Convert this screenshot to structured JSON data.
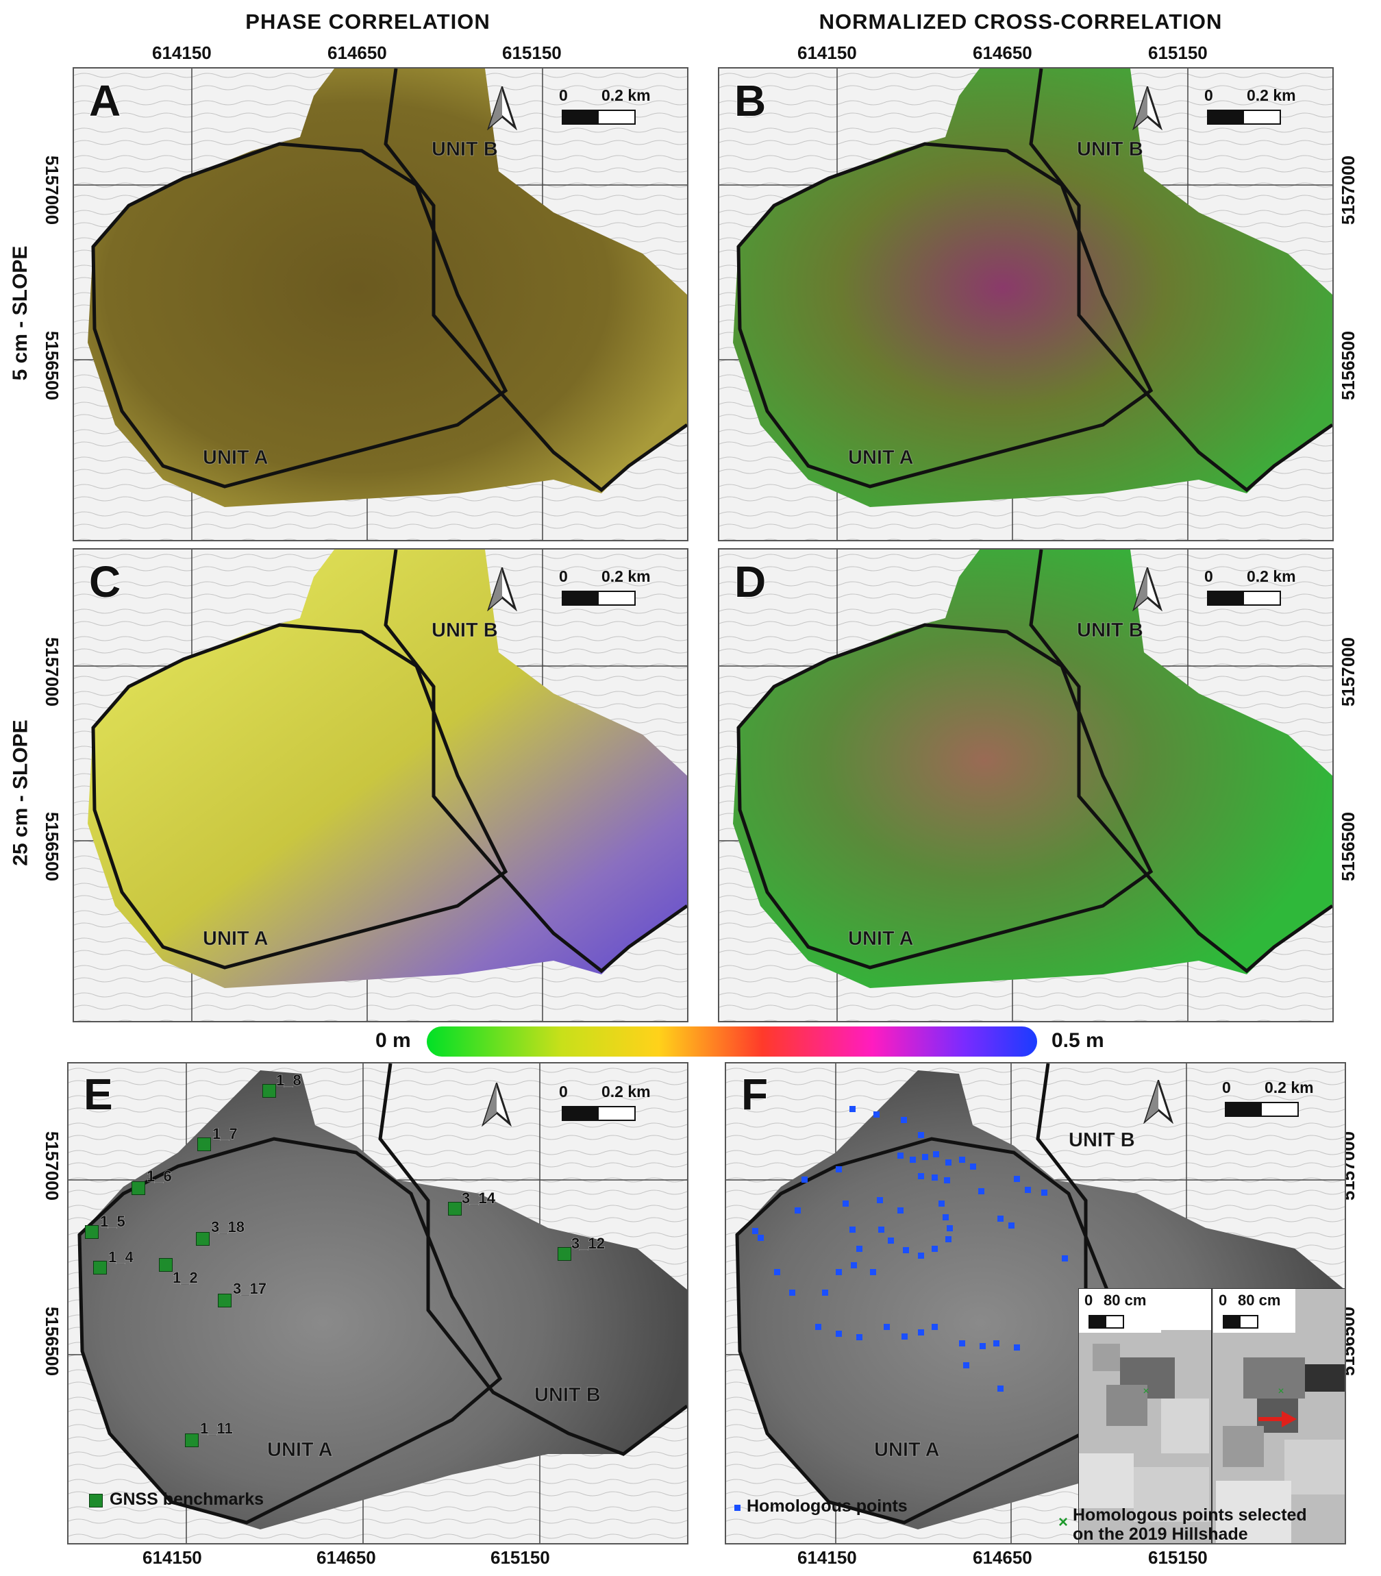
{
  "column_titles": [
    "PHASE CORRELATION",
    "NORMALIZED CROSS-CORRELATION"
  ],
  "row_titles": [
    "5 cm - SLOPE",
    "25 cm - SLOPE"
  ],
  "x_ticks_top": [
    "614150",
    "614650",
    "615150"
  ],
  "x_ticks_bottom": [
    "614150",
    "614650",
    "615150"
  ],
  "y_ticks": [
    "5157000",
    "5156500"
  ],
  "panels": [
    {
      "letter": "A",
      "units": [
        "UNIT A",
        "UNIT B"
      ]
    },
    {
      "letter": "B",
      "units": [
        "UNIT A",
        "UNIT B"
      ]
    },
    {
      "letter": "C",
      "units": [
        "UNIT A",
        "UNIT B"
      ]
    },
    {
      "letter": "D",
      "units": [
        "UNIT A",
        "UNIT B"
      ]
    },
    {
      "letter": "E",
      "units": [
        "UNIT A",
        "UNIT B"
      ]
    },
    {
      "letter": "F",
      "units": [
        "UNIT A",
        "UNIT B"
      ]
    }
  ],
  "scalebar": {
    "zero": "0",
    "length": "0.2 km"
  },
  "inset_scale": {
    "zero": "0",
    "length": "80 cm"
  },
  "colorbar": {
    "min_label": "0 m",
    "max_label": "0.5 m",
    "colors": [
      "#00e026",
      "#c8e01a",
      "#ffd21a",
      "#ff3a2a",
      "#ff1cc0",
      "#7a2bff",
      "#1a3cff"
    ]
  },
  "benchmarks": [
    "1_8",
    "1_7",
    "1_6",
    "1_5",
    "1_4",
    "1_2",
    "3_18",
    "3_17",
    "1_11",
    "3_14",
    "3_12"
  ],
  "legend": {
    "gnss": "GNSS benchmarks",
    "homologous": "Homologous points",
    "selected_line1": "Homologous points selected",
    "selected_line2": "on the 2019 Hillshade",
    "selected_marker": "×"
  },
  "colors": {
    "benchmark": "#1e8c2c",
    "homologous": "#1a4fff",
    "shift_arrow": "#e0201a"
  }
}
